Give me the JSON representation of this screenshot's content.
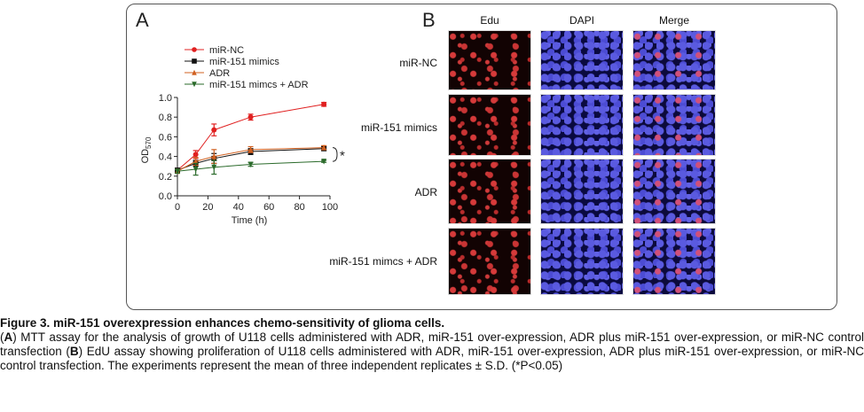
{
  "panel_a": {
    "letter": "A"
  },
  "panel_b": {
    "letter": "B",
    "columns": [
      "Edu",
      "DAPI",
      "Merge"
    ],
    "rows": [
      "miR-NC",
      "miR-151 mimics",
      "ADR",
      "miR-151 mimcs + ADR"
    ]
  },
  "chart_data": {
    "type": "line",
    "x": [
      0,
      12,
      24,
      48,
      96
    ],
    "xlabel": "Time (h)",
    "ylabel": "OD",
    "ylabel_sub": "570",
    "xlim": [
      0,
      100
    ],
    "ylim": [
      0.0,
      1.0
    ],
    "xticks": [
      "0",
      "20",
      "40",
      "60",
      "80",
      "100"
    ],
    "yticks": [
      "0.0",
      "0.2",
      "0.4",
      "0.6",
      "0.8",
      "1.0"
    ],
    "legend_position": "top-left",
    "significance_label": "*",
    "series": [
      {
        "name": "miR-NC",
        "marker": "circle",
        "color": "#e02020",
        "values": [
          0.26,
          0.42,
          0.67,
          0.8,
          0.93
        ],
        "errors": [
          0.02,
          0.04,
          0.06,
          0.03,
          0.02
        ]
      },
      {
        "name": "miR-151 mimics",
        "marker": "square",
        "color": "#111111",
        "values": [
          0.26,
          0.33,
          0.38,
          0.45,
          0.48
        ],
        "errors": [
          0.02,
          0.03,
          0.05,
          0.03,
          0.02
        ]
      },
      {
        "name": "ADR",
        "marker": "triangle-up",
        "color": "#d06020",
        "values": [
          0.25,
          0.35,
          0.4,
          0.47,
          0.49
        ],
        "errors": [
          0.02,
          0.04,
          0.07,
          0.03,
          0.02
        ]
      },
      {
        "name": "miR-151 mimcs + ADR",
        "marker": "triangle-down",
        "color": "#2a6a2a",
        "values": [
          0.25,
          0.27,
          0.29,
          0.32,
          0.35
        ],
        "errors": [
          0.02,
          0.06,
          0.07,
          0.02,
          0.01
        ]
      }
    ]
  },
  "caption": {
    "title": "Figure 3. miR-151 overexpression enhances chemo-sensitivity of glioma cells.",
    "open_a": "(",
    "label_a": "A",
    "text_a": ") MTT assay for the analysis of growth of U118 cells administered with ADR, miR-151 over-expression, ADR plus miR-151 over-expression, or miR-NC control transfection (",
    "label_b": "B",
    "text_b": ") EdU assay showing proliferation of U118 cells administered with ADR, miR-151 over-expression, ADR plus miR-151 over-expression, or miR-NC control transfection. The experiments represent the mean of three independent replicates ± S.D. (*P<0.05)"
  }
}
